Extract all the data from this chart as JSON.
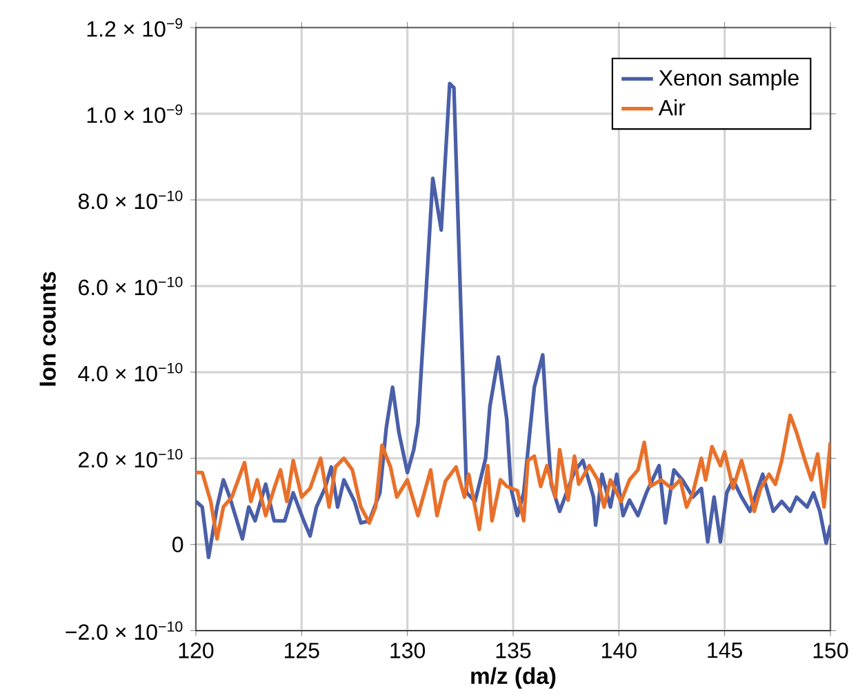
{
  "chart_data": {
    "type": "line",
    "xlabel": "m/z (da)",
    "ylabel": "Ion counts",
    "xlim": [
      120,
      150
    ],
    "xticks": [
      120,
      125,
      130,
      135,
      140,
      145,
      150
    ],
    "ylim": [
      -2e-10,
      1.2e-09
    ],
    "yticks": [
      {
        "value": -2e-10,
        "label": "−2.0 × 10$^{−10}$"
      },
      0,
      {
        "value": 2e-10,
        "label": "2.0 × 10$^{−10}$"
      },
      {
        "value": 4e-10,
        "label": "4.0 × 10$^{−10}$"
      },
      {
        "value": 6e-10,
        "label": "6.0 × 10$^{−10}$"
      },
      {
        "value": 8e-10,
        "label": "8.0 × 10$^{−10}$"
      },
      {
        "value": 1e-09,
        "label": "1.0 × 10$^{−9}$"
      },
      {
        "value": 1.2e-09,
        "label": "1.2 × 10$^{−9}$"
      }
    ],
    "grid": true,
    "legend": "top right",
    "line_style": "solid",
    "series": [
      {
        "name": "Xenon sample",
        "color": "#4a5fa8",
        "x": [
          120.0,
          120.3,
          120.6,
          121.0,
          121.3,
          121.6,
          122.2,
          122.5,
          122.8,
          123.3,
          123.7,
          124.2,
          124.6,
          125.1,
          125.4,
          125.7,
          126.1,
          126.4,
          126.7,
          127.0,
          127.5,
          127.8,
          128.2,
          128.7,
          129.0,
          129.3,
          129.6,
          130.0,
          130.3,
          130.5,
          130.9,
          131.2,
          131.6,
          132.0,
          132.2,
          132.8,
          133.2,
          133.7,
          133.9,
          134.3,
          134.7,
          134.9,
          135.2,
          135.5,
          136.0,
          136.4,
          136.6,
          136.8,
          137.2,
          137.9,
          138.3,
          138.8,
          138.9,
          139.2,
          139.6,
          139.9,
          140.2,
          140.5,
          140.9,
          141.3,
          141.9,
          142.2,
          142.6,
          143.0,
          143.5,
          143.9,
          144.2,
          144.5,
          144.8,
          145.1,
          145.4,
          145.8,
          146.2,
          146.8,
          147.3,
          147.7,
          148.1,
          148.4,
          148.9,
          149.2,
          149.5,
          149.8,
          150.0
        ],
        "values": [
          1e-10,
          8.7e-11,
          -3e-11,
          8.7e-11,
          1.5e-10,
          1.1e-10,
          1.3e-11,
          8.7e-11,
          5.5e-11,
          1.4e-10,
          5.5e-11,
          5.5e-11,
          1.2e-10,
          5.5e-11,
          2e-11,
          8.7e-11,
          1.3e-10,
          1.8e-10,
          8.7e-11,
          1.5e-10,
          1e-10,
          5e-11,
          5.5e-11,
          1.2e-10,
          2.7e-10,
          3.65e-10,
          2.6e-10,
          1.67e-10,
          2.2e-10,
          2.8e-10,
          6e-10,
          8.5e-10,
          7.3e-10,
          1.07e-09,
          1.06e-09,
          1.2e-10,
          1e-10,
          2e-10,
          3.2e-10,
          4.35e-10,
          2.9e-10,
          1.3e-10,
          6.7e-11,
          1.2e-10,
          3.65e-10,
          4.4e-10,
          2.8e-10,
          1.4e-10,
          7.7e-11,
          1.7e-10,
          1.95e-10,
          1.1e-10,
          4.5e-11,
          1.63e-10,
          8.7e-11,
          1.63e-10,
          6.7e-11,
          1.03e-10,
          6.7e-11,
          1.2e-10,
          1.83e-10,
          5e-11,
          1.73e-10,
          1.5e-10,
          1.1e-10,
          1.3e-10,
          6e-12,
          1.1e-10,
          6e-12,
          1.2e-10,
          1.5e-10,
          1.1e-10,
          7.7e-11,
          1.63e-10,
          7.7e-11,
          1e-10,
          7.7e-11,
          1.1e-10,
          8.7e-11,
          1.2e-10,
          7.7e-11,
          3e-12,
          4.5e-11
        ]
      },
      {
        "name": "Air",
        "color": "#e8702a",
        "x": [
          120.0,
          120.3,
          120.7,
          121.0,
          121.3,
          121.7,
          122.3,
          122.6,
          122.9,
          123.3,
          123.7,
          124.0,
          124.3,
          124.6,
          125.0,
          125.4,
          125.9,
          126.3,
          126.6,
          127.0,
          127.4,
          127.8,
          128.2,
          128.5,
          128.8,
          129.2,
          129.5,
          130.0,
          130.5,
          131.1,
          131.4,
          131.8,
          132.3,
          132.7,
          132.9,
          133.4,
          133.8,
          134.0,
          134.4,
          134.7,
          135.2,
          135.5,
          135.7,
          136.0,
          136.3,
          136.6,
          137.0,
          137.2,
          137.6,
          137.9,
          138.1,
          138.6,
          139.0,
          139.3,
          139.6,
          140.1,
          140.5,
          140.9,
          141.2,
          141.5,
          142.0,
          142.5,
          142.9,
          143.2,
          143.5,
          143.9,
          144.1,
          144.4,
          144.8,
          145.0,
          145.4,
          145.8,
          146.1,
          146.4,
          146.7,
          147.1,
          147.4,
          147.7,
          148.1,
          148.4,
          148.8,
          149.1,
          149.4,
          149.7,
          150.0
        ],
        "values": [
          1.67e-10,
          1.67e-10,
          1e-10,
          1.3e-11,
          8.7e-11,
          1.1e-10,
          1.9e-10,
          1e-10,
          1.5e-10,
          6.7e-11,
          1.3e-10,
          1.73e-10,
          1e-10,
          1.95e-10,
          1.1e-10,
          1.3e-10,
          2e-10,
          8.7e-11,
          1.8e-10,
          2e-10,
          1.73e-10,
          8.7e-11,
          5e-11,
          8.7e-11,
          2.3e-10,
          1.8e-10,
          1.1e-10,
          1.5e-10,
          6.7e-11,
          1.73e-10,
          6.7e-11,
          1.47e-10,
          1.8e-10,
          1.1e-10,
          1.63e-10,
          3.5e-11,
          1.83e-10,
          5.5e-11,
          1.5e-10,
          1.35e-10,
          1.25e-10,
          5.5e-11,
          1.95e-10,
          2.05e-10,
          1.35e-10,
          1.83e-10,
          1.1e-10,
          2.2e-10,
          1.03e-10,
          2.05e-10,
          1.4e-10,
          1.83e-10,
          1.5e-10,
          8.7e-11,
          1.5e-10,
          1e-10,
          1.5e-10,
          1.73e-10,
          2.37e-10,
          1.35e-10,
          1.5e-10,
          1.3e-10,
          1.5e-10,
          8.7e-11,
          1.2e-10,
          2e-10,
          1.5e-10,
          2.27e-10,
          1.83e-10,
          2.15e-10,
          1.3e-10,
          1.95e-10,
          1.4e-10,
          7.7e-11,
          1.3e-10,
          1.63e-10,
          1.4e-10,
          1.95e-10,
          3e-10,
          2.6e-10,
          1.95e-10,
          1.5e-10,
          2.1e-10,
          8.7e-11,
          2.37e-10
        ]
      }
    ]
  }
}
